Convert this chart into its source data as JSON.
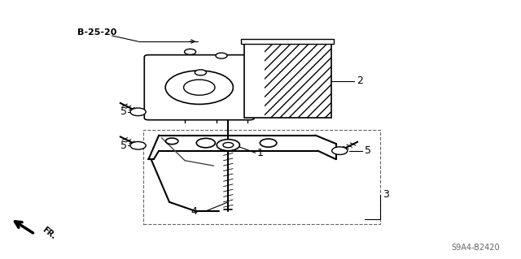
{
  "title": "",
  "bg_color": "#ffffff",
  "fig_width": 6.4,
  "fig_height": 3.19,
  "dpi": 100,
  "diagram_code": "S9A4-B2420",
  "ref_label": "B-25-20",
  "fr_label": "FR.",
  "line_color": "#000000",
  "text_color": "#000000"
}
